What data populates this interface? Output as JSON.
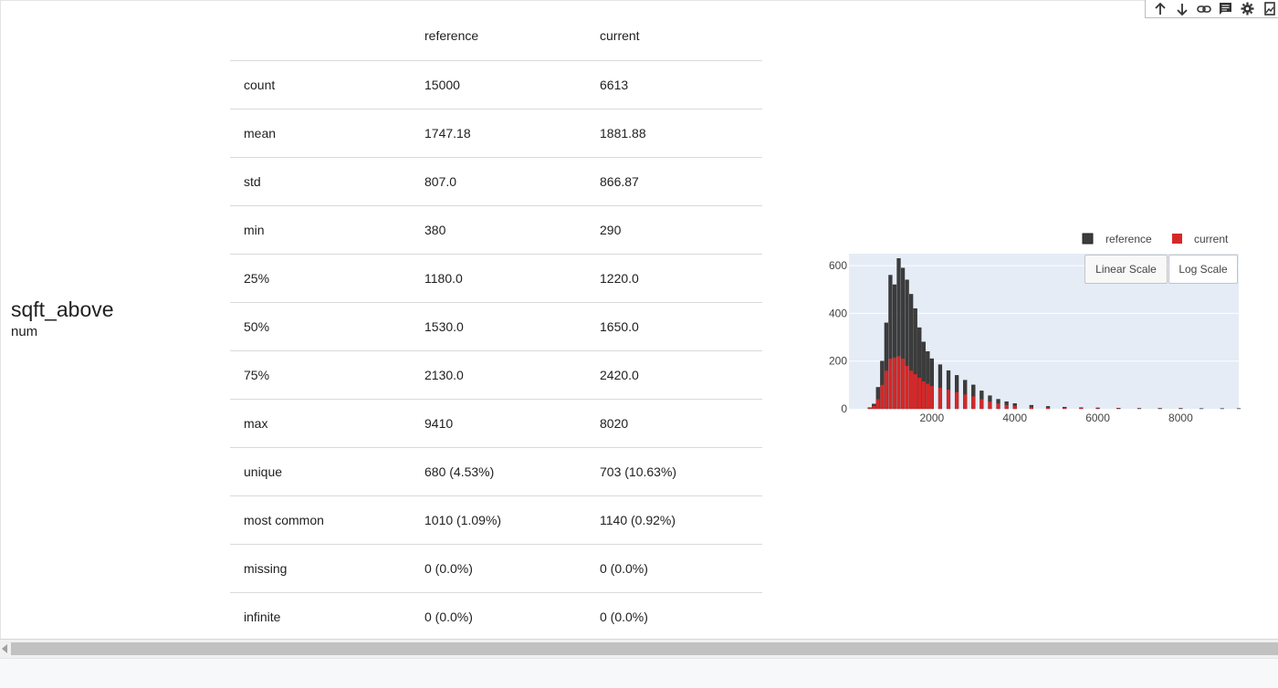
{
  "toolbar": {
    "icons": [
      "arrow-up-icon",
      "arrow-down-icon",
      "link-icon",
      "comment-icon",
      "gear-icon",
      "image-icon"
    ]
  },
  "feature": {
    "name": "sqft_above",
    "type": "num"
  },
  "stats_table": {
    "headers": [
      "",
      "reference",
      "current"
    ],
    "rows": [
      [
        "count",
        "15000",
        "6613"
      ],
      [
        "mean",
        "1747.18",
        "1881.88"
      ],
      [
        "std",
        "807.0",
        "866.87"
      ],
      [
        "min",
        "380",
        "290"
      ],
      [
        "25%",
        "1180.0",
        "1220.0"
      ],
      [
        "50%",
        "1530.0",
        "1650.0"
      ],
      [
        "75%",
        "2130.0",
        "2420.0"
      ],
      [
        "max",
        "9410",
        "8020"
      ],
      [
        "unique",
        "680 (4.53%)",
        "703 (10.63%)"
      ],
      [
        "most common",
        "1010 (1.09%)",
        "1140 (0.92%)"
      ],
      [
        "missing",
        "0 (0.0%)",
        "0 (0.0%)"
      ],
      [
        "infinite",
        "0 (0.0%)",
        "0 (0.0%)"
      ]
    ]
  },
  "buttons": {
    "linear": "Linear Scale",
    "log": "Log Scale"
  },
  "chart_data": {
    "type": "bar",
    "xlim": [
      0,
      9400
    ],
    "ylim": [
      0,
      650
    ],
    "x_ticks": [
      2000,
      4000,
      6000,
      8000
    ],
    "y_ticks": [
      0,
      200,
      400,
      600
    ],
    "x_tick_labels": [
      "2000",
      "4000",
      "6000",
      "8000"
    ],
    "y_tick_labels": [
      "0",
      "200",
      "400",
      "600"
    ],
    "legend_placement": "top-right",
    "grid": true,
    "plot_background": "#e5ecf6",
    "series": [
      {
        "name": "reference",
        "color": "#3c3c3c",
        "x": [
          500,
          600,
          700,
          800,
          900,
          1000,
          1100,
          1200,
          1300,
          1400,
          1500,
          1600,
          1700,
          1800,
          1900,
          2000,
          2200,
          2400,
          2600,
          2800,
          3000,
          3200,
          3400,
          3600,
          3800,
          4000,
          4400,
          4800,
          5200,
          5600,
          6000,
          6500,
          7000,
          7500,
          8000,
          8500,
          9000,
          9400
        ],
        "values": [
          5,
          20,
          90,
          200,
          360,
          560,
          520,
          630,
          590,
          540,
          480,
          420,
          340,
          280,
          240,
          210,
          185,
          160,
          140,
          120,
          100,
          75,
          55,
          40,
          30,
          22,
          15,
          10,
          7,
          5,
          4,
          3,
          2,
          2,
          2,
          1,
          1,
          1
        ]
      },
      {
        "name": "current",
        "color": "#d62728",
        "x": [
          500,
          600,
          700,
          800,
          900,
          1000,
          1100,
          1200,
          1300,
          1400,
          1500,
          1600,
          1700,
          1800,
          1900,
          2000,
          2200,
          2400,
          2600,
          2800,
          3000,
          3200,
          3400,
          3600,
          3800,
          4000,
          4400,
          4800,
          5200,
          5600,
          6000,
          6500,
          7000,
          7500,
          8000
        ],
        "values": [
          3,
          12,
          40,
          100,
          160,
          210,
          215,
          220,
          210,
          180,
          160,
          145,
          130,
          115,
          105,
          95,
          88,
          80,
          70,
          60,
          52,
          40,
          30,
          22,
          16,
          12,
          8,
          5,
          4,
          3,
          2,
          2,
          1,
          1,
          1
        ]
      }
    ]
  }
}
